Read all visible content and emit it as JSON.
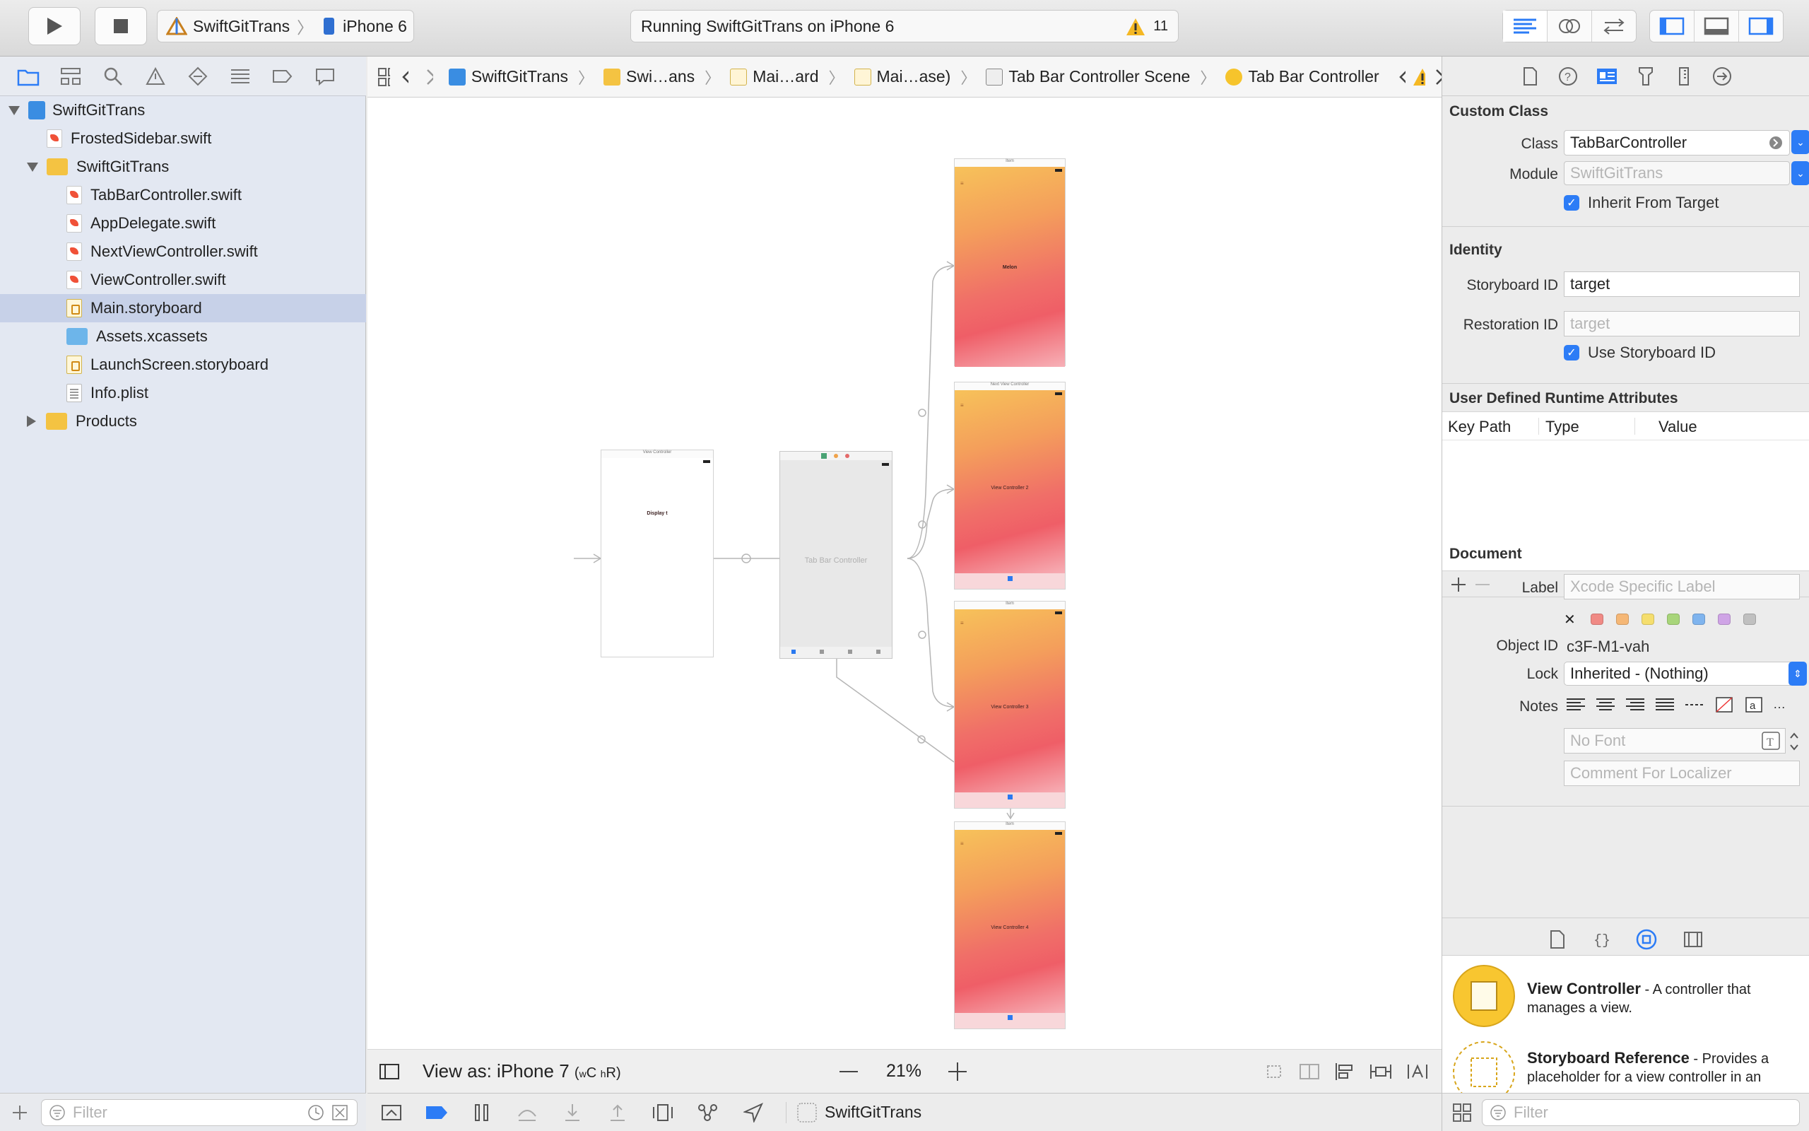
{
  "toolbar": {
    "scheme_project": "SwiftGitTrans",
    "scheme_device": "iPhone 6",
    "activity_text": "Running SwiftGitTrans on iPhone 6",
    "warning_count": "11"
  },
  "navigator": {
    "items": [
      {
        "label": "SwiftGitTrans"
      },
      {
        "label": "FrostedSidebar.swift"
      },
      {
        "label": "SwiftGitTrans"
      },
      {
        "label": "TabBarController.swift"
      },
      {
        "label": "AppDelegate.swift"
      },
      {
        "label": "NextViewController.swift"
      },
      {
        "label": "ViewController.swift"
      },
      {
        "label": "Main.storyboard"
      },
      {
        "label": "Assets.xcassets"
      },
      {
        "label": "LaunchScreen.storyboard"
      },
      {
        "label": "Info.plist"
      },
      {
        "label": "Products"
      }
    ],
    "filter_placeholder": "Filter"
  },
  "jumpbar": {
    "crumbs": [
      "SwiftGitTrans",
      "Swi…ans",
      "Mai…ard",
      "Mai…ase)",
      "Tab Bar Controller Scene",
      "Tab Bar Controller"
    ]
  },
  "canvas": {
    "scenes": [
      {
        "title": "View Controller",
        "label": "Display t"
      },
      {
        "title": "",
        "label": "Tab Bar Controller"
      },
      {
        "title": "Item",
        "label": "Melon"
      },
      {
        "title": "Next View Controller",
        "label": "View Controller 2"
      },
      {
        "title": "Item",
        "label": "View Controller 3"
      },
      {
        "title": "Item",
        "label": "View Controller 4"
      }
    ]
  },
  "canvas_footer": {
    "view_as": "View as: iPhone 7",
    "size_class_w": "w",
    "size_class_w_val": "C",
    "size_class_h": "h",
    "size_class_h_val": "R",
    "zoom": "21%"
  },
  "debugbar": {
    "target": "SwiftGitTrans"
  },
  "inspector": {
    "custom_class": {
      "title": "Custom Class",
      "class_label": "Class",
      "class_value": "TabBarController",
      "module_label": "Module",
      "module_placeholder": "SwiftGitTrans",
      "inherit_label": "Inherit From Target"
    },
    "identity": {
      "title": "Identity",
      "storyboard_id_label": "Storyboard ID",
      "storyboard_id_value": "target",
      "restoration_id_label": "Restoration ID",
      "restoration_id_placeholder": "target",
      "use_storyboard_label": "Use Storyboard ID"
    },
    "runtime": {
      "title": "User Defined Runtime Attributes",
      "columns": [
        "Key Path",
        "Type",
        "Value"
      ]
    },
    "document": {
      "title": "Document",
      "label_label": "Label",
      "label_placeholder": "Xcode Specific Label",
      "object_id_label": "Object ID",
      "object_id_value": "c3F-M1-vah",
      "lock_label": "Lock",
      "lock_value": "Inherited - (Nothing)",
      "notes_label": "Notes",
      "font_placeholder": "No Font",
      "comment_placeholder": "Comment For Localizer",
      "label_colors": [
        "#f08a85",
        "#f5b776",
        "#f5de6e",
        "#a8d57a",
        "#7fb4ee",
        "#cfa4e6",
        "#c0c0c0"
      ]
    },
    "library": {
      "items": [
        {
          "title": "View Controller",
          "desc": " - A controller that manages a view."
        },
        {
          "title": "Storyboard Reference",
          "desc": " - Provides a placeholder for a view controller in an"
        }
      ],
      "filter_placeholder": "Filter"
    }
  }
}
